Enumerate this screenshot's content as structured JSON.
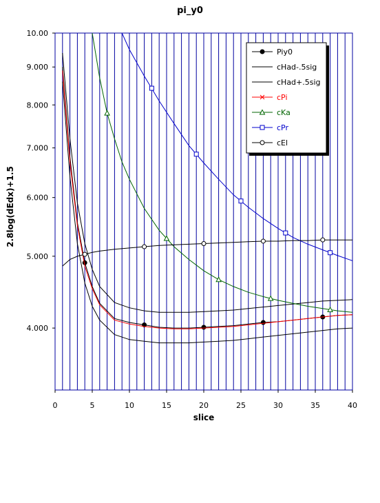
{
  "chart_data": {
    "type": "line",
    "title": "pi_y0",
    "xlabel": "slice",
    "ylabel": "2.8log(dEdx)+1.5",
    "xlim": [
      0,
      40
    ],
    "ylim": [
      3.3,
      10.0
    ],
    "y_scale": "log",
    "grid": "vertical lines at each integer slice",
    "legend_position": "top-right",
    "x_ticks": [
      "0",
      "5",
      "10",
      "15",
      "20",
      "25",
      "30",
      "35",
      "40"
    ],
    "y_ticks": [
      {
        "value": 4.0,
        "label": "4.000"
      },
      {
        "value": 5.0,
        "label": "5.000"
      },
      {
        "value": 6.0,
        "label": "6.000"
      },
      {
        "value": 7.0,
        "label": "7.000"
      },
      {
        "value": 8.0,
        "label": "8.000"
      },
      {
        "value": 9.0,
        "label": "9.000"
      },
      {
        "value": 10.0,
        "label": "10.00"
      }
    ],
    "series": [
      {
        "name": "Piy0",
        "color": "#000000",
        "marker": "filled-circle",
        "x": [
          1,
          2,
          3,
          4,
          5,
          6,
          8,
          10,
          12,
          14,
          16,
          18,
          20,
          22,
          24,
          26,
          28,
          30,
          32,
          34,
          36,
          38,
          40
        ],
        "y": [
          9.0,
          6.8,
          5.55,
          4.9,
          4.55,
          4.32,
          4.12,
          4.07,
          4.04,
          4.01,
          4.0,
          4.0,
          4.01,
          4.02,
          4.03,
          4.05,
          4.07,
          4.08,
          4.1,
          4.12,
          4.14,
          4.16,
          4.17
        ],
        "marker_x": [
          4,
          12,
          20,
          28,
          36
        ]
      },
      {
        "name": "cHad-.5sig",
        "color": "#000000",
        "marker": "none",
        "x": [
          1,
          2,
          3,
          4,
          5,
          6,
          8,
          10,
          12,
          14,
          16,
          18,
          20,
          22,
          24,
          26,
          28,
          30,
          32,
          34,
          36,
          38,
          40
        ],
        "y": [
          8.6,
          6.4,
          5.2,
          4.6,
          4.28,
          4.1,
          3.92,
          3.86,
          3.84,
          3.82,
          3.82,
          3.82,
          3.83,
          3.84,
          3.85,
          3.87,
          3.89,
          3.91,
          3.93,
          3.95,
          3.97,
          3.99,
          4.0
        ]
      },
      {
        "name": "cHad+.5sig",
        "color": "#000000",
        "marker": "none",
        "x": [
          1,
          2,
          3,
          4,
          5,
          6,
          8,
          10,
          12,
          14,
          16,
          18,
          20,
          22,
          24,
          26,
          28,
          30,
          32,
          34,
          36,
          38,
          40
        ],
        "y": [
          9.4,
          7.2,
          5.9,
          5.2,
          4.8,
          4.55,
          4.33,
          4.26,
          4.22,
          4.2,
          4.2,
          4.2,
          4.21,
          4.22,
          4.23,
          4.25,
          4.27,
          4.29,
          4.31,
          4.33,
          4.35,
          4.36,
          4.37
        ]
      },
      {
        "name": "cPi",
        "color": "#ff0000",
        "marker": "x",
        "x": [
          1,
          2,
          3,
          4,
          5,
          6,
          8,
          10,
          12,
          14,
          16,
          18,
          20,
          22,
          24,
          26,
          28,
          30,
          32,
          34,
          36,
          38,
          40
        ],
        "y": [
          8.9,
          6.7,
          5.5,
          4.85,
          4.52,
          4.3,
          4.1,
          4.05,
          4.02,
          4.0,
          3.99,
          3.99,
          4.0,
          4.01,
          4.02,
          4.04,
          4.06,
          4.08,
          4.1,
          4.12,
          4.14,
          4.16,
          4.17
        ]
      },
      {
        "name": "cKa",
        "color": "#006400",
        "marker": "triangle",
        "x": [
          5,
          6,
          7,
          8,
          9,
          10,
          12,
          14,
          16,
          18,
          20,
          22,
          24,
          26,
          28,
          30,
          32,
          34,
          36,
          38,
          40
        ],
        "y": [
          10.0,
          8.7,
          7.8,
          7.2,
          6.7,
          6.35,
          5.8,
          5.42,
          5.15,
          4.95,
          4.78,
          4.65,
          4.55,
          4.47,
          4.41,
          4.36,
          4.32,
          4.28,
          4.25,
          4.22,
          4.2
        ],
        "marker_x": [
          7,
          15,
          22,
          29,
          37
        ]
      },
      {
        "name": "cPr",
        "color": "#0000cc",
        "marker": "open-square",
        "x": [
          9,
          10,
          12,
          14,
          16,
          18,
          20,
          22,
          24,
          26,
          28,
          30,
          32,
          34,
          36,
          38,
          40
        ],
        "y": [
          10.0,
          9.5,
          8.75,
          8.1,
          7.55,
          7.05,
          6.68,
          6.35,
          6.05,
          5.82,
          5.62,
          5.45,
          5.3,
          5.19,
          5.1,
          5.01,
          4.93
        ],
        "marker_x": [
          13,
          19,
          25,
          31,
          37
        ]
      },
      {
        "name": "cEl",
        "color": "#000000",
        "marker": "open-circle",
        "x": [
          1,
          2,
          3,
          4,
          5,
          6,
          8,
          10,
          12,
          14,
          16,
          18,
          20,
          22,
          24,
          26,
          28,
          30,
          32,
          34,
          36,
          38,
          40
        ],
        "y": [
          4.85,
          4.95,
          5.0,
          5.03,
          5.06,
          5.08,
          5.11,
          5.13,
          5.15,
          5.17,
          5.18,
          5.19,
          5.2,
          5.21,
          5.22,
          5.23,
          5.24,
          5.24,
          5.25,
          5.25,
          5.26,
          5.26,
          5.26
        ],
        "marker_x": [
          4,
          12,
          20,
          28,
          36
        ]
      }
    ]
  }
}
